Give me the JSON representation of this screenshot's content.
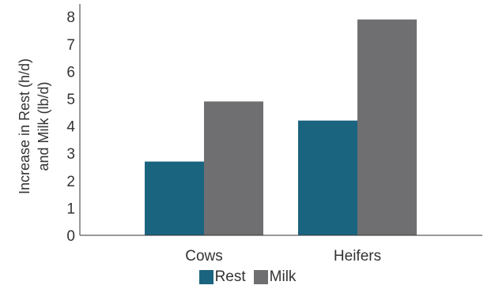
{
  "chart_data": {
    "type": "bar",
    "categories": [
      "Cows",
      "Heifers"
    ],
    "series": [
      {
        "name": "Rest",
        "values": [
          2.7,
          4.2
        ],
        "color": "#1b6480"
      },
      {
        "name": "Milk",
        "values": [
          4.9,
          7.9
        ],
        "color": "#6f6f72"
      }
    ],
    "ylabel": [
      "Increase in Rest (h/d)",
      "and Milk (lb/d)"
    ],
    "yticks": [
      "0",
      "1",
      "2",
      "3",
      "4",
      "5",
      "6",
      "7",
      "8"
    ],
    "ylim": [
      0,
      8
    ],
    "grid": false,
    "legend_position": "bottom-center"
  }
}
